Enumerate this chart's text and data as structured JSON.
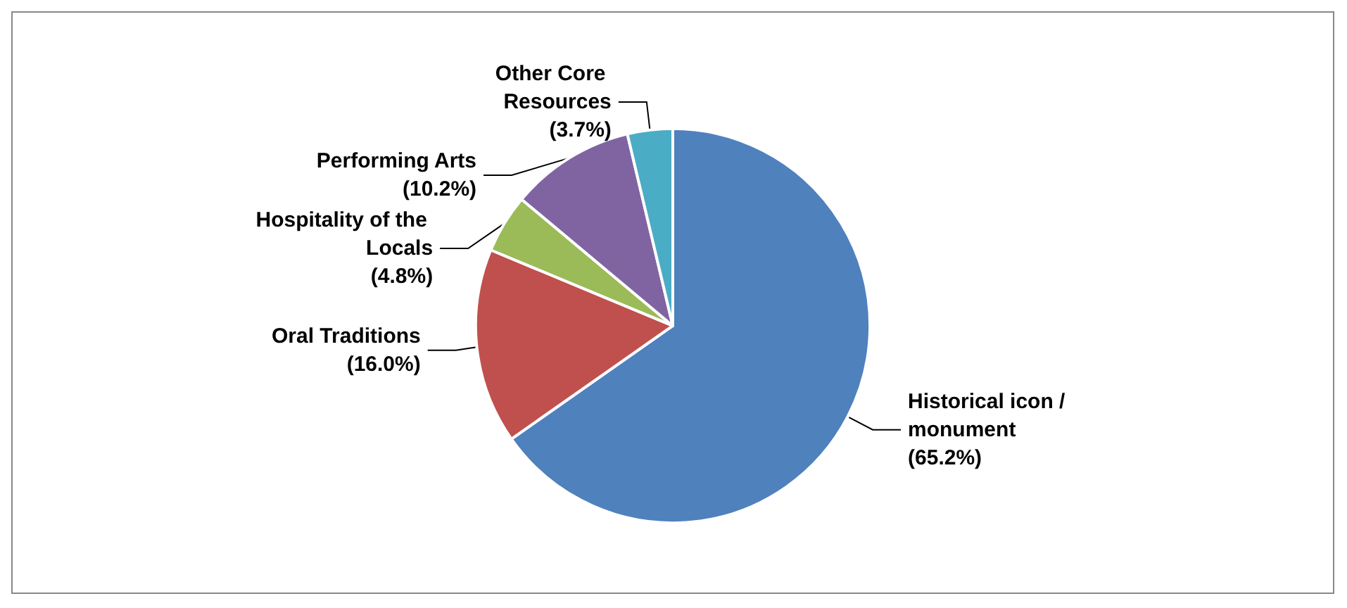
{
  "chart_data": {
    "type": "pie",
    "categories": [
      "Historical icon /monument",
      "Oral Traditions",
      "Hospitality of the Locals",
      "Performing Arts",
      "Other Core Resources"
    ],
    "values": [
      65.2,
      16.0,
      4.8,
      10.2,
      3.7
    ],
    "colors": [
      "#4f81bd",
      "#c0504d",
      "#9bbb59",
      "#8064a2",
      "#4bacc6"
    ],
    "value_labels": [
      "(65.2%)",
      "(16.0%)",
      "(4.8%)",
      "(10.2%)",
      "(3.7%)"
    ],
    "legend": false
  }
}
